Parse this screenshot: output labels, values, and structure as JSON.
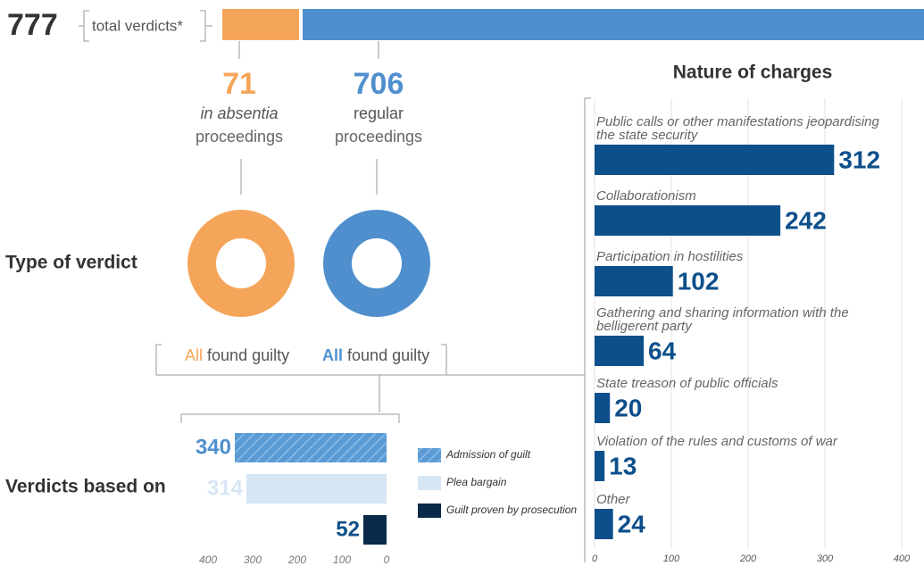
{
  "chart_data": [
    {
      "type": "split-bar",
      "total": 777,
      "total_label": "total verdicts*",
      "verdict_title": "Type of verdict",
      "series": [
        {
          "name": "in absentia",
          "detail": "proceedings",
          "color": "#f5a55a",
          "values": [
            71
          ],
          "verdict": [
            "All",
            "found guilty"
          ]
        },
        {
          "name": "regular",
          "detail": "proceedings",
          "color": "#4f8fcd",
          "values": [
            706
          ],
          "verdict": [
            "All",
            "found guilty"
          ]
        }
      ]
    },
    {
      "type": "hbar",
      "title": "Verdicts based on",
      "series": [
        {
          "name": "Admission of guilt",
          "color": "#5b9bd5",
          "pattern": "hatch",
          "values": [
            340
          ]
        },
        {
          "name": "Plea bargain",
          "color": "#d6e6f5",
          "values": [
            314
          ]
        },
        {
          "name": "Guilt proven by prosecution",
          "color": "#0b2a4a",
          "values": [
            52
          ]
        }
      ],
      "xlim": [
        400,
        0
      ],
      "xticks": [
        400,
        300,
        200,
        100,
        0
      ]
    },
    {
      "type": "bar",
      "title": "Nature of charges",
      "categories": [
        "Public calls or other manifestations jeopardising the state security",
        "Collaborationism",
        "Participation in hostilities",
        "Gathering and sharing information with the belligerent party",
        "State treason of public officials",
        "Violation of the rules and customs of war",
        "Other"
      ],
      "values": [
        312,
        242,
        102,
        64,
        20,
        13,
        24
      ],
      "color": "#0d4f8b",
      "xlim": [
        0,
        400
      ],
      "xticks": [
        0,
        100,
        200,
        300,
        400
      ],
      "grid": true
    }
  ]
}
